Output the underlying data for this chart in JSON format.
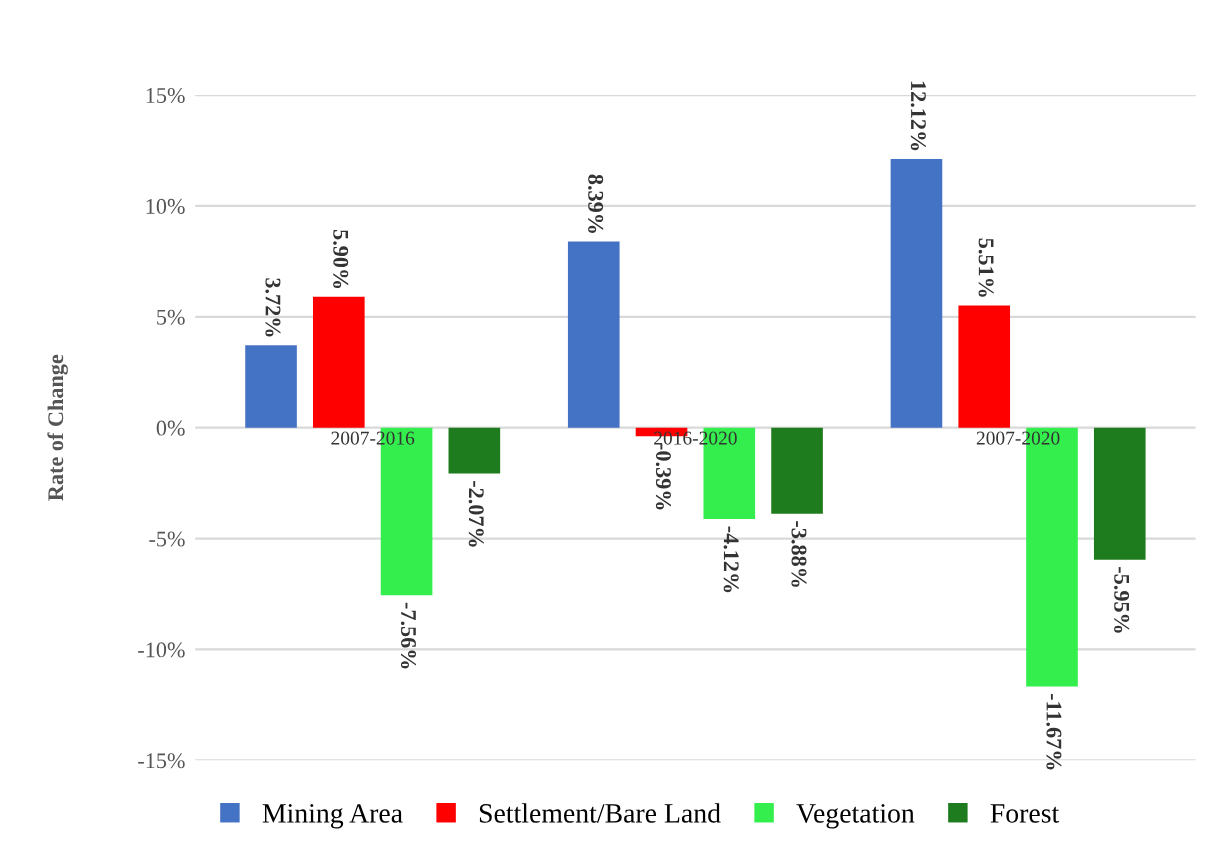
{
  "chart_data": {
    "type": "bar",
    "ylabel": "Rate of Change",
    "categories": [
      "2007-2016",
      "2016-2020",
      "2007-2020"
    ],
    "series": [
      {
        "name": "Mining Area",
        "color": "#4472c4",
        "values": [
          3.72,
          8.39,
          12.12
        ],
        "value_labels": [
          "3.72%",
          "8.39%",
          "12.12%"
        ]
      },
      {
        "name": "Settlement/Bare Land",
        "color": "#ff0000",
        "values": [
          5.9,
          -0.39,
          5.51
        ],
        "value_labels": [
          "5.90%",
          "-0.39%",
          "5.51%"
        ]
      },
      {
        "name": "Vegetation",
        "color": "#33ee4d",
        "values": [
          -7.56,
          -4.12,
          -11.67
        ],
        "value_labels": [
          "-7.56%",
          "-4.12%",
          "-11.67%"
        ]
      },
      {
        "name": "Forest",
        "color": "#1e7b1e",
        "values": [
          -2.07,
          -3.88,
          -5.95
        ],
        "value_labels": [
          "-2.07%",
          "-3.88%",
          "-5.95%"
        ]
      }
    ],
    "ylim": [
      -15,
      15
    ],
    "yticks": [
      {
        "value": -15,
        "label": "-15%"
      },
      {
        "value": -10,
        "label": "-10%"
      },
      {
        "value": -5,
        "label": "-5%"
      },
      {
        "value": 0,
        "label": "0%"
      },
      {
        "value": 5,
        "label": "5%"
      },
      {
        "value": 10,
        "label": "10%"
      },
      {
        "value": 15,
        "label": "15%"
      }
    ],
    "grid": "y",
    "legend": "bottom"
  }
}
